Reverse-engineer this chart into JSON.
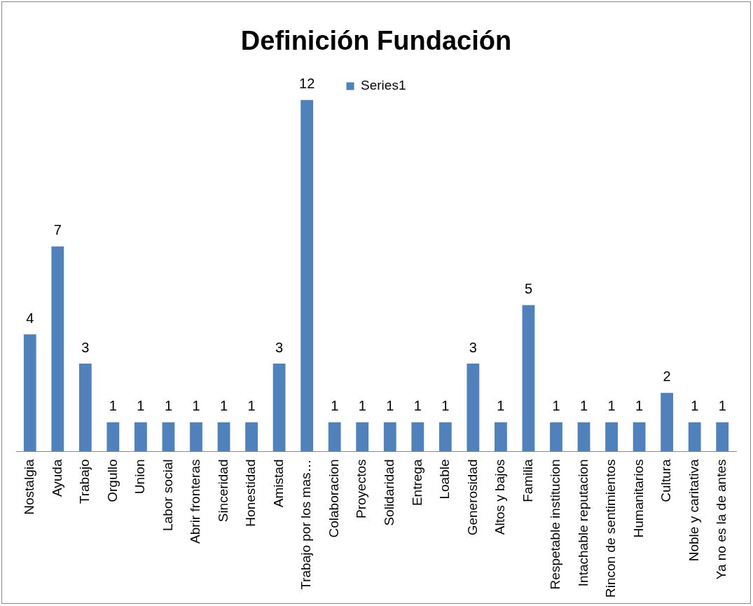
{
  "chart_data": {
    "type": "bar",
    "title": "Definición Fundación",
    "categories": [
      "Nostalgia",
      "Ayuda",
      "Trabajo",
      "Orgullo",
      "Union",
      "Labor social",
      "Abrir fronteras",
      "Sinceridad",
      "Honestidad",
      "Amistad",
      "Trabajo por los mas…",
      "Colaboracion",
      "Proyectos",
      "Solidaridad",
      "Entrega",
      "Loable",
      "Generosidad",
      "Altos y bajos",
      "Familia",
      "Respetable institucion",
      "Intachable reputacion",
      "Rincon de sentimientos",
      "Humanitarios",
      "Cultura",
      "Noble y caritativa",
      "Ya no es la de antes"
    ],
    "series": [
      {
        "name": "Series1",
        "color": "#4f81bd",
        "values": [
          4,
          7,
          3,
          1,
          1,
          1,
          1,
          1,
          1,
          3,
          12,
          1,
          1,
          1,
          1,
          1,
          3,
          1,
          5,
          1,
          1,
          1,
          1,
          2,
          1,
          1
        ]
      }
    ],
    "data_labels": true,
    "legend": "top",
    "grid": false
  }
}
